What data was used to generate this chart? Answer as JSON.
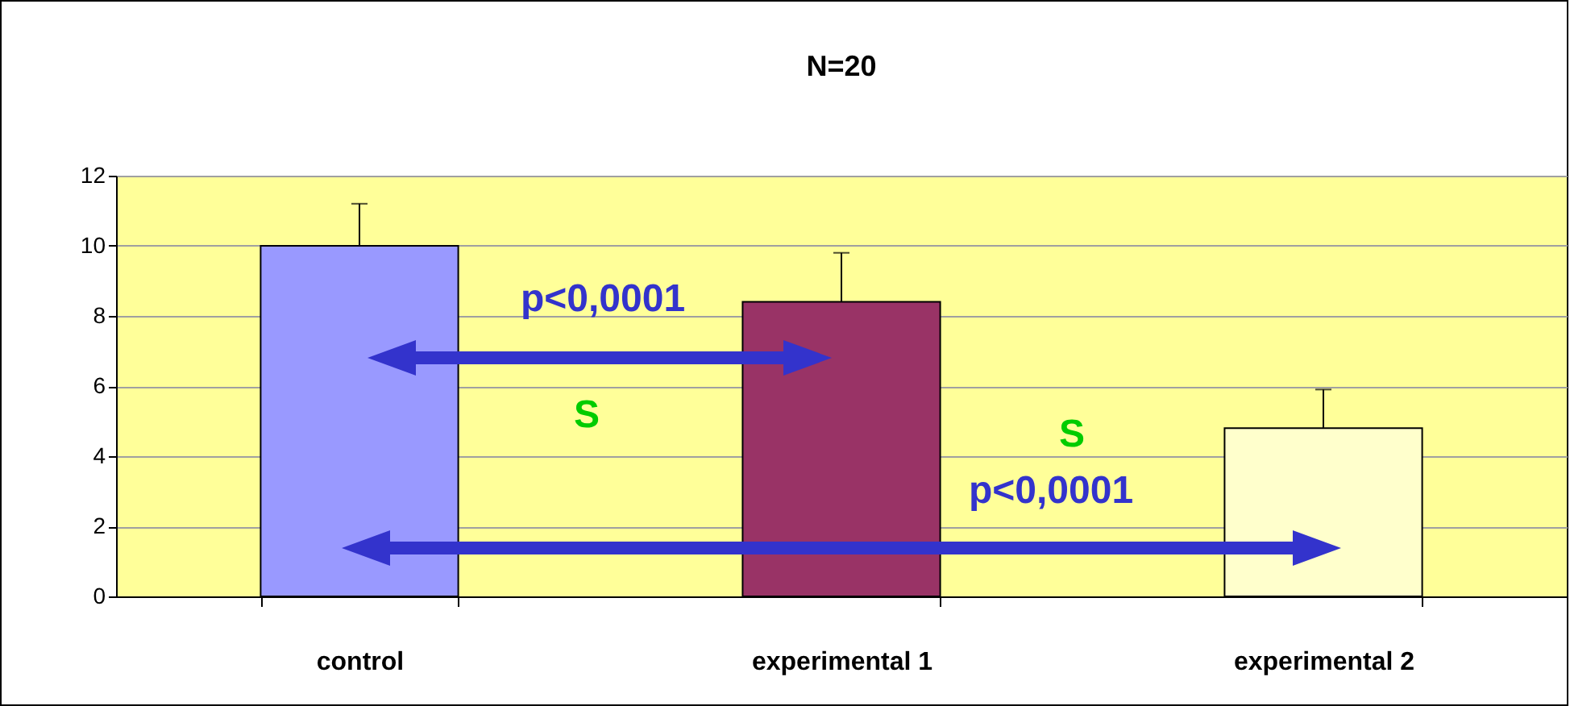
{
  "chart_data": {
    "type": "bar",
    "title": "N=20",
    "categories": [
      "control",
      "experimental 1",
      "experimental 2"
    ],
    "values": [
      10,
      8.4,
      4.8
    ],
    "colors": [
      "#9999ff",
      "#993366",
      "#ffffcc"
    ],
    "errors": [
      [
        10,
        11.2
      ],
      [
        8.4,
        9.8
      ],
      [
        4.8,
        5.9
      ]
    ],
    "ylim": [
      0,
      12
    ],
    "yticks": [
      0,
      2,
      4,
      6,
      8,
      10,
      12
    ],
    "grid": "y",
    "annotations": [
      "p<0,0001",
      "S",
      "S",
      "p<0,0001"
    ]
  }
}
